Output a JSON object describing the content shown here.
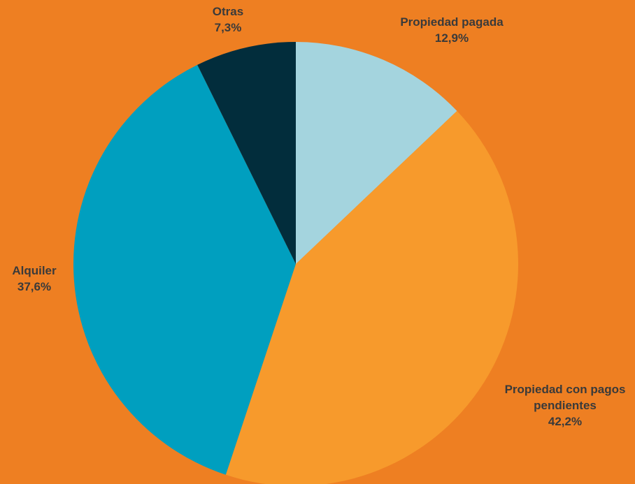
{
  "chart_data": {
    "type": "pie",
    "background_color": "#ee7f22",
    "slices": [
      {
        "label_lines": [
          "Propiedad pagada"
        ],
        "percent_label": "12,9%",
        "value": 12.9,
        "color": "#a4d4de"
      },
      {
        "label_lines": [
          "Propiedad con pagos",
          "pendientes"
        ],
        "percent_label": "42,2%",
        "value": 42.2,
        "color": "#f79a2c"
      },
      {
        "label_lines": [
          "Alquiler"
        ],
        "percent_label": "37,6%",
        "value": 37.6,
        "color": "#009fbf"
      },
      {
        "label_lines": [
          "Otras"
        ],
        "percent_label": "7,3%",
        "value": 7.3,
        "color": "#022d3c"
      }
    ],
    "start_angle": "12 o'clock",
    "direction": "clockwise"
  }
}
